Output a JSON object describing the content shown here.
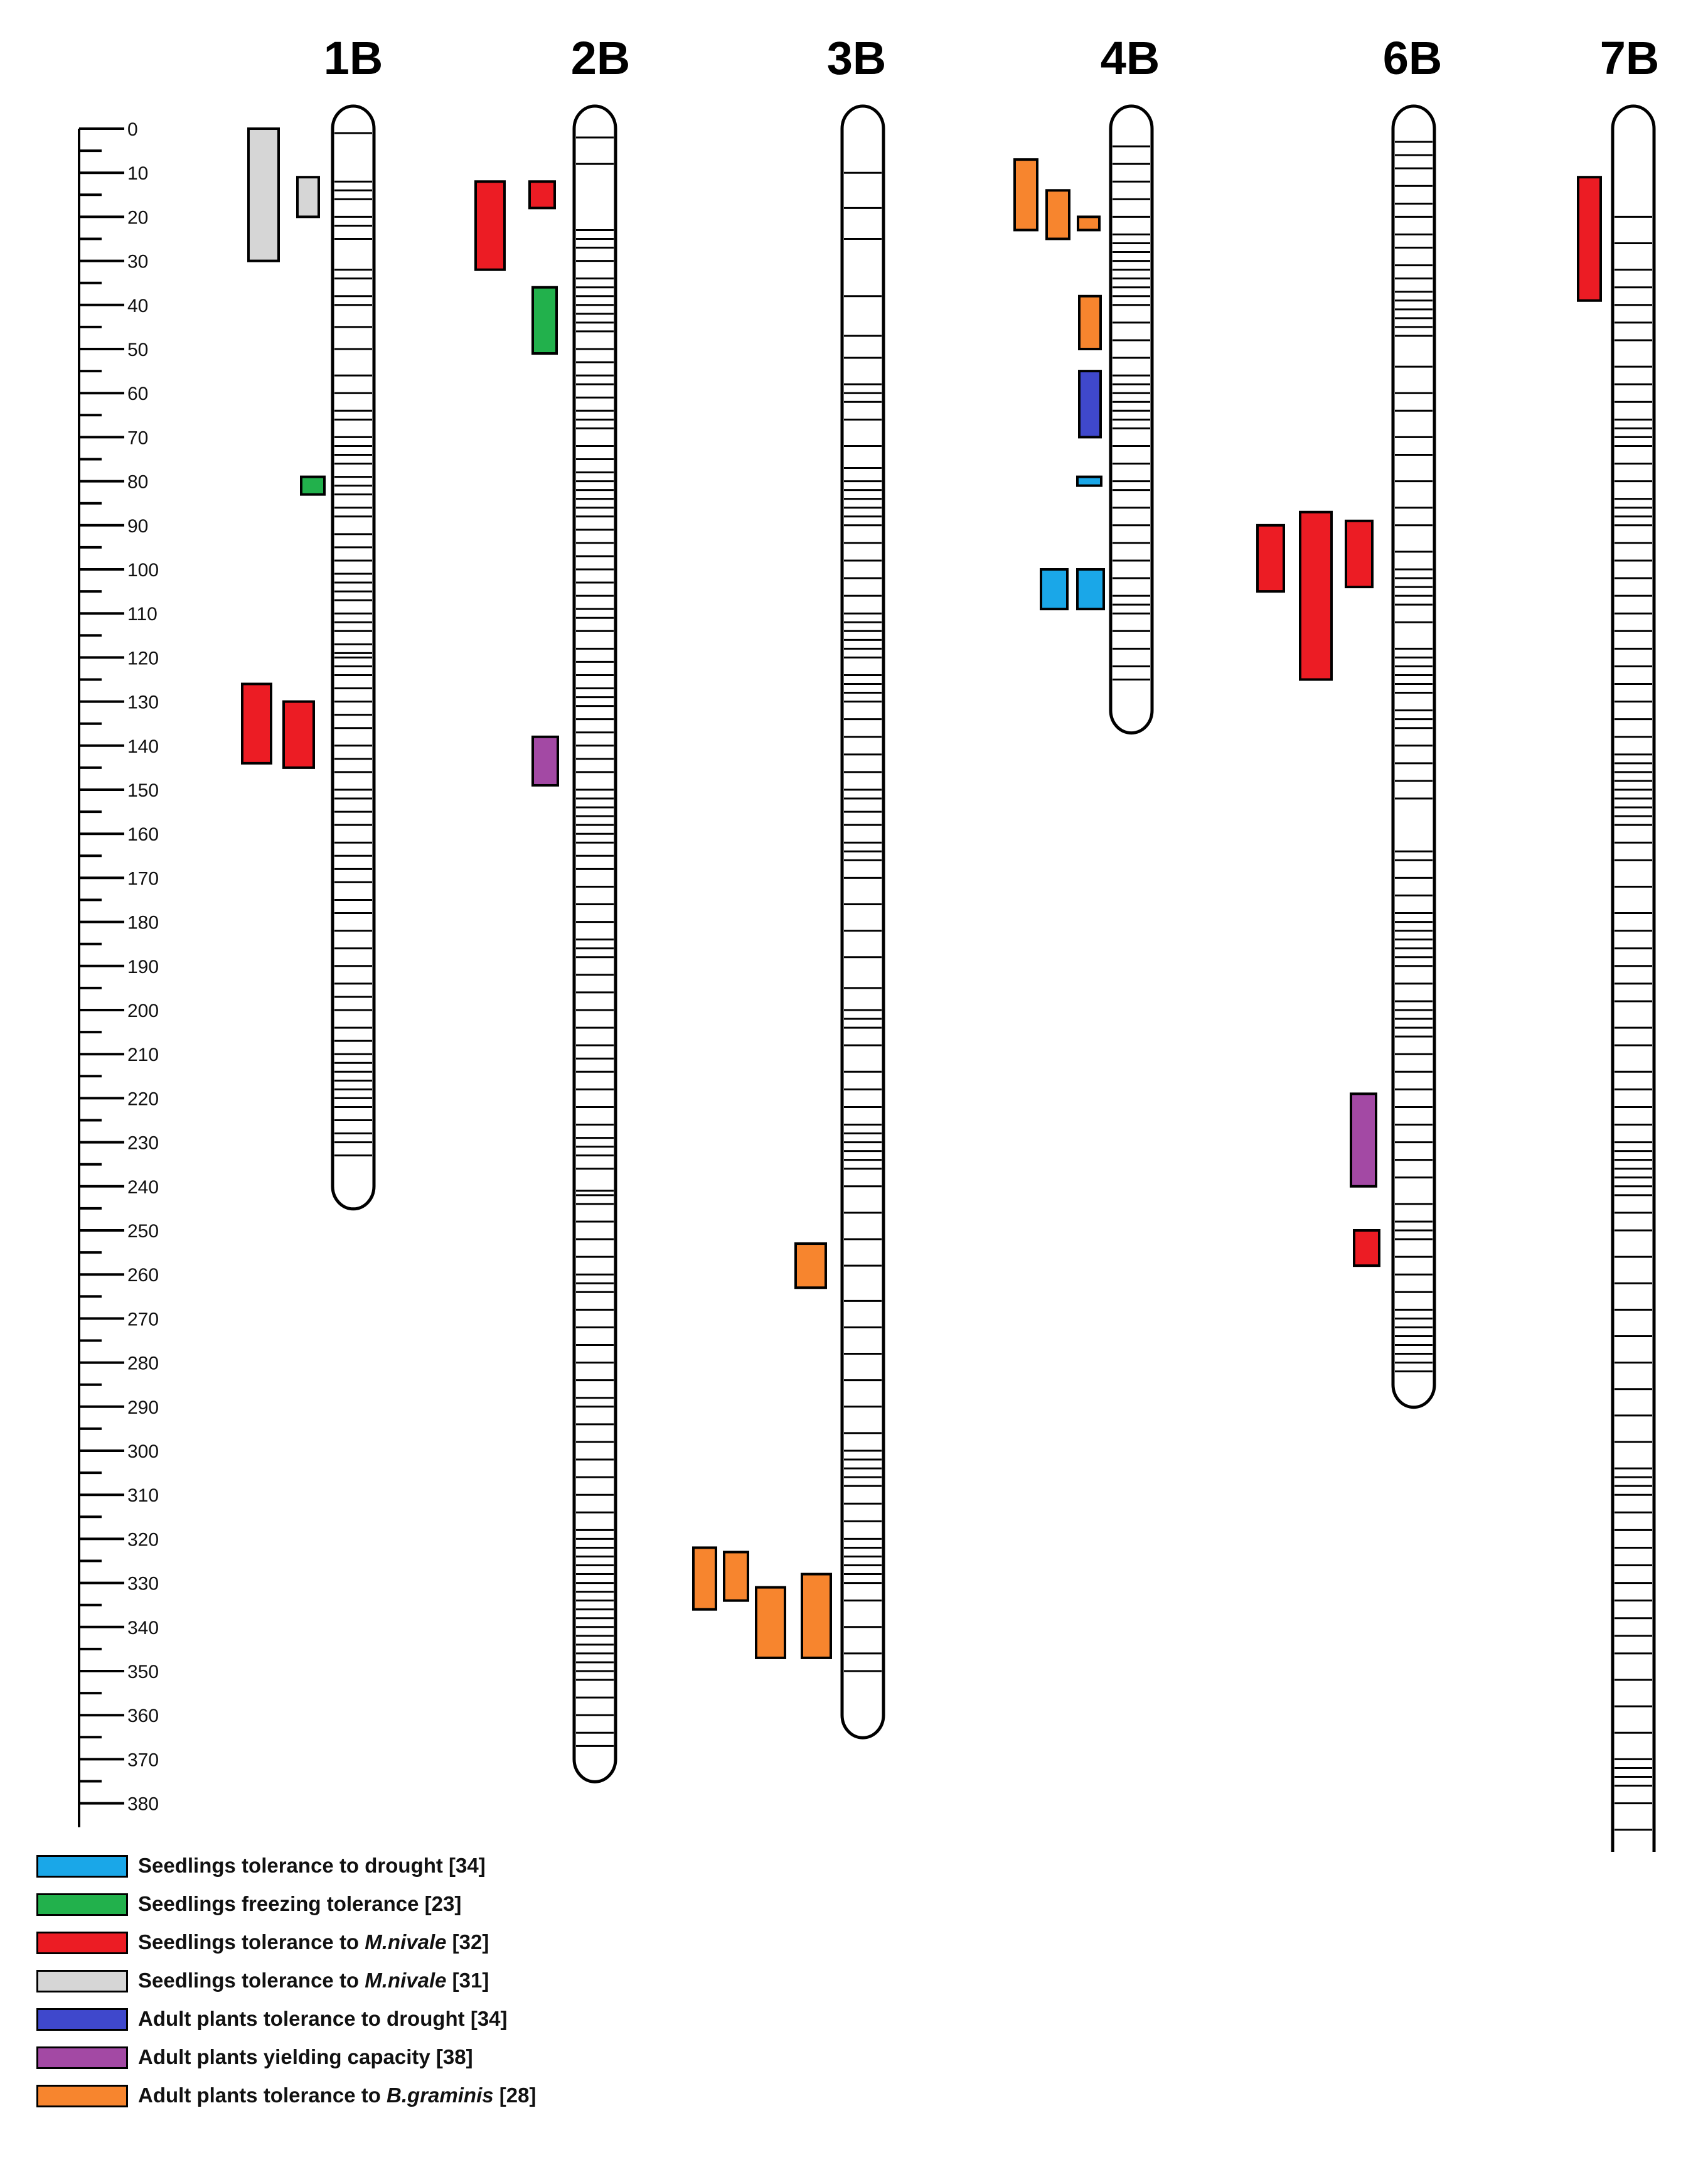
{
  "chart_data": {
    "type": "diagram",
    "title": "",
    "scale": {
      "unit": "cM",
      "min": 0,
      "max": 380,
      "major_step": 10,
      "minor_step": 5
    },
    "chromosomes": [
      {
        "name": "1B",
        "length": 240,
        "markers": [
          1,
          12,
          14,
          16,
          20,
          22,
          25,
          32,
          34,
          38,
          40,
          45,
          50,
          56,
          60,
          64,
          66,
          70,
          72,
          74,
          76,
          79,
          81,
          83,
          86,
          88,
          92,
          95,
          98,
          101,
          103,
          105,
          107,
          110,
          112,
          114,
          117,
          119,
          120,
          122,
          124,
          127,
          130,
          133,
          136,
          140,
          143,
          146,
          150,
          152,
          155,
          158,
          162,
          165,
          168,
          171,
          175,
          178,
          182,
          186,
          190,
          194,
          197,
          200,
          204,
          207,
          210,
          212,
          214,
          216,
          218,
          220,
          222,
          225,
          228,
          230,
          233
        ]
      },
      {
        "name": "2B",
        "length": 370,
        "markers": [
          2,
          8,
          23,
          25,
          27,
          30,
          34,
          36,
          38,
          40,
          42,
          44,
          46,
          50,
          53,
          56,
          58,
          61,
          64,
          66,
          68,
          72,
          75,
          78,
          80,
          82,
          84,
          86,
          88,
          91,
          94,
          97,
          100,
          103,
          106,
          109,
          111,
          114,
          118,
          121,
          124,
          127,
          129,
          131,
          134,
          137,
          140,
          143,
          146,
          150,
          152,
          154,
          156,
          158,
          160,
          162,
          165,
          168,
          172,
          176,
          180,
          184,
          186,
          188,
          192,
          196,
          200,
          204,
          208,
          211,
          214,
          218,
          222,
          226,
          229,
          231,
          233,
          236,
          241,
          242,
          244,
          248,
          252,
          256,
          260,
          262,
          264,
          268,
          272,
          276,
          280,
          284,
          288,
          290,
          294,
          298,
          302,
          306,
          310,
          314,
          318,
          320,
          322,
          324,
          326,
          328,
          330,
          332,
          334,
          336,
          338,
          340,
          342,
          344,
          346,
          348,
          350,
          352,
          356,
          360,
          364,
          367
        ]
      },
      {
        "name": "3B",
        "length": 360,
        "markers": [
          10,
          18,
          25,
          38,
          47,
          52,
          58,
          60,
          62,
          66,
          72,
          77,
          80,
          82,
          84,
          86,
          88,
          90,
          94,
          98,
          102,
          106,
          110,
          112,
          114,
          116,
          118,
          120,
          124,
          126,
          128,
          130,
          134,
          138,
          142,
          146,
          150,
          152,
          155,
          158,
          162,
          164,
          166,
          170,
          176,
          182,
          188,
          195,
          200,
          202,
          204,
          208,
          214,
          218,
          222,
          226,
          228,
          230,
          232,
          234,
          236,
          240,
          246,
          252,
          258,
          266,
          272,
          278,
          284,
          290,
          296,
          300,
          302,
          304,
          306,
          308,
          312,
          316,
          320,
          322,
          324,
          326,
          328,
          330,
          334,
          340,
          346,
          350
        ]
      },
      {
        "name": "4B",
        "length": 132,
        "markers": [
          4,
          8,
          12,
          16,
          20,
          24,
          26,
          28,
          30,
          32,
          34,
          36,
          38,
          40,
          44,
          48,
          52,
          56,
          58,
          60,
          62,
          64,
          66,
          68,
          72,
          76,
          80,
          82,
          86,
          90,
          94,
          98,
          102,
          106,
          108,
          110,
          114,
          118,
          122,
          125
        ]
      },
      {
        "name": "6B",
        "length": 285,
        "markers": [
          3,
          6,
          9,
          13,
          17,
          20,
          24,
          27,
          31,
          34,
          37,
          39,
          41,
          43,
          45,
          47,
          54,
          60,
          64,
          70,
          74,
          80,
          86,
          90,
          96,
          100,
          102,
          104,
          106,
          108,
          112,
          118,
          120,
          122,
          124,
          126,
          128,
          132,
          134,
          136,
          140,
          144,
          148,
          152,
          164,
          166,
          170,
          174,
          178,
          180,
          182,
          184,
          186,
          188,
          190,
          194,
          198,
          200,
          202,
          204,
          206,
          210,
          214,
          218,
          222,
          226,
          230,
          234,
          238,
          244,
          248,
          250,
          252,
          256,
          260,
          264,
          268,
          270,
          272,
          274,
          276,
          278,
          280,
          282
        ]
      },
      {
        "name": "7B",
        "length": 395,
        "markers": [
          20,
          26,
          32,
          36,
          40,
          44,
          48,
          54,
          58,
          62,
          66,
          68,
          70,
          72,
          76,
          80,
          84,
          86,
          88,
          90,
          94,
          98,
          102,
          106,
          110,
          114,
          118,
          122,
          126,
          130,
          134,
          138,
          142,
          144,
          146,
          148,
          150,
          152,
          154,
          156,
          158,
          162,
          166,
          172,
          178,
          182,
          186,
          190,
          194,
          198,
          204,
          208,
          214,
          218,
          222,
          226,
          230,
          232,
          234,
          236,
          238,
          240,
          242,
          246,
          250,
          256,
          262,
          268,
          274,
          280,
          286,
          292,
          298,
          304,
          306,
          308,
          310,
          314,
          318,
          322,
          326,
          330,
          334,
          338,
          342,
          346,
          352,
          358,
          364,
          370,
          372,
          374,
          376,
          380,
          386
        ]
      }
    ],
    "qtl_regions": [
      {
        "chrom": "1B",
        "trait": "freezing",
        "start": 79,
        "end": 83
      },
      {
        "chrom": "1B",
        "trait": "mnivale31",
        "start": 0,
        "end": 30
      },
      {
        "chrom": "1B",
        "trait": "mnivale31",
        "start": 11,
        "end": 20
      },
      {
        "chrom": "1B",
        "trait": "mnivale32",
        "start": 126,
        "end": 144
      },
      {
        "chrom": "1B",
        "trait": "mnivale32",
        "start": 130,
        "end": 145
      },
      {
        "chrom": "2B",
        "trait": "mnivale32",
        "start": 12,
        "end": 32
      },
      {
        "chrom": "2B",
        "trait": "mnivale32",
        "start": 12,
        "end": 18
      },
      {
        "chrom": "2B",
        "trait": "freezing",
        "start": 36,
        "end": 51
      },
      {
        "chrom": "2B",
        "trait": "yield",
        "start": 138,
        "end": 149
      },
      {
        "chrom": "3B",
        "trait": "bgraminis",
        "start": 253,
        "end": 263
      },
      {
        "chrom": "3B",
        "trait": "bgraminis",
        "start": 322,
        "end": 336
      },
      {
        "chrom": "3B",
        "trait": "bgraminis",
        "start": 323,
        "end": 334
      },
      {
        "chrom": "3B",
        "trait": "bgraminis",
        "start": 331,
        "end": 347
      },
      {
        "chrom": "3B",
        "trait": "bgraminis",
        "start": 328,
        "end": 347
      },
      {
        "chrom": "4B",
        "trait": "bgraminis",
        "start": 7,
        "end": 23
      },
      {
        "chrom": "4B",
        "trait": "bgraminis",
        "start": 14,
        "end": 25
      },
      {
        "chrom": "4B",
        "trait": "bgraminis",
        "start": 20,
        "end": 23
      },
      {
        "chrom": "4B",
        "trait": "bgraminis",
        "start": 38,
        "end": 50
      },
      {
        "chrom": "4B",
        "trait": "adult_drought",
        "start": 55,
        "end": 70
      },
      {
        "chrom": "4B",
        "trait": "seedling_drought",
        "start": 79,
        "end": 81
      },
      {
        "chrom": "4B",
        "trait": "seedling_drought",
        "start": 100,
        "end": 109
      },
      {
        "chrom": "4B",
        "trait": "seedling_drought",
        "start": 100,
        "end": 109
      },
      {
        "chrom": "6B",
        "trait": "mnivale32",
        "start": 90,
        "end": 105
      },
      {
        "chrom": "6B",
        "trait": "mnivale32",
        "start": 87,
        "end": 125
      },
      {
        "chrom": "6B",
        "trait": "mnivale32",
        "start": 89,
        "end": 104
      },
      {
        "chrom": "6B",
        "trait": "yield",
        "start": 219,
        "end": 240
      },
      {
        "chrom": "6B",
        "trait": "mnivale32",
        "start": 250,
        "end": 258
      },
      {
        "chrom": "7B",
        "trait": "mnivale32",
        "start": 11,
        "end": 39
      }
    ],
    "legend": [
      {
        "key": "seedling_drought",
        "color": "#1aa7e8",
        "label": "Seedlings tolerance to drought",
        "italic": "",
        "ref": "[34]"
      },
      {
        "key": "freezing",
        "color": "#22b14c",
        "label": "Seedlings  freezing tolerance",
        "italic": "",
        "ref": "[23]"
      },
      {
        "key": "mnivale32",
        "color": "#ec1c24",
        "label": "Seedlings tolerance to ",
        "italic": "M.nivale",
        "ref": "[32]"
      },
      {
        "key": "mnivale31",
        "color": "#d6d6d6",
        "label": "Seedlings tolerance to ",
        "italic": "M.nivale",
        "ref": "[31]"
      },
      {
        "key": "adult_drought",
        "color": "#3f48cc",
        "label": "Adult plants tolerance to drought",
        "italic": "",
        "ref": "[34]"
      },
      {
        "key": "yield",
        "color": "#a349a4",
        "label": "Adult  plants yielding capacity",
        "italic": "",
        "ref": "[38]"
      },
      {
        "key": "bgraminis",
        "color": "#f7852e",
        "label": "Adult plants tolerance to ",
        "italic": "B.graminis",
        "ref": "[28]"
      }
    ]
  }
}
